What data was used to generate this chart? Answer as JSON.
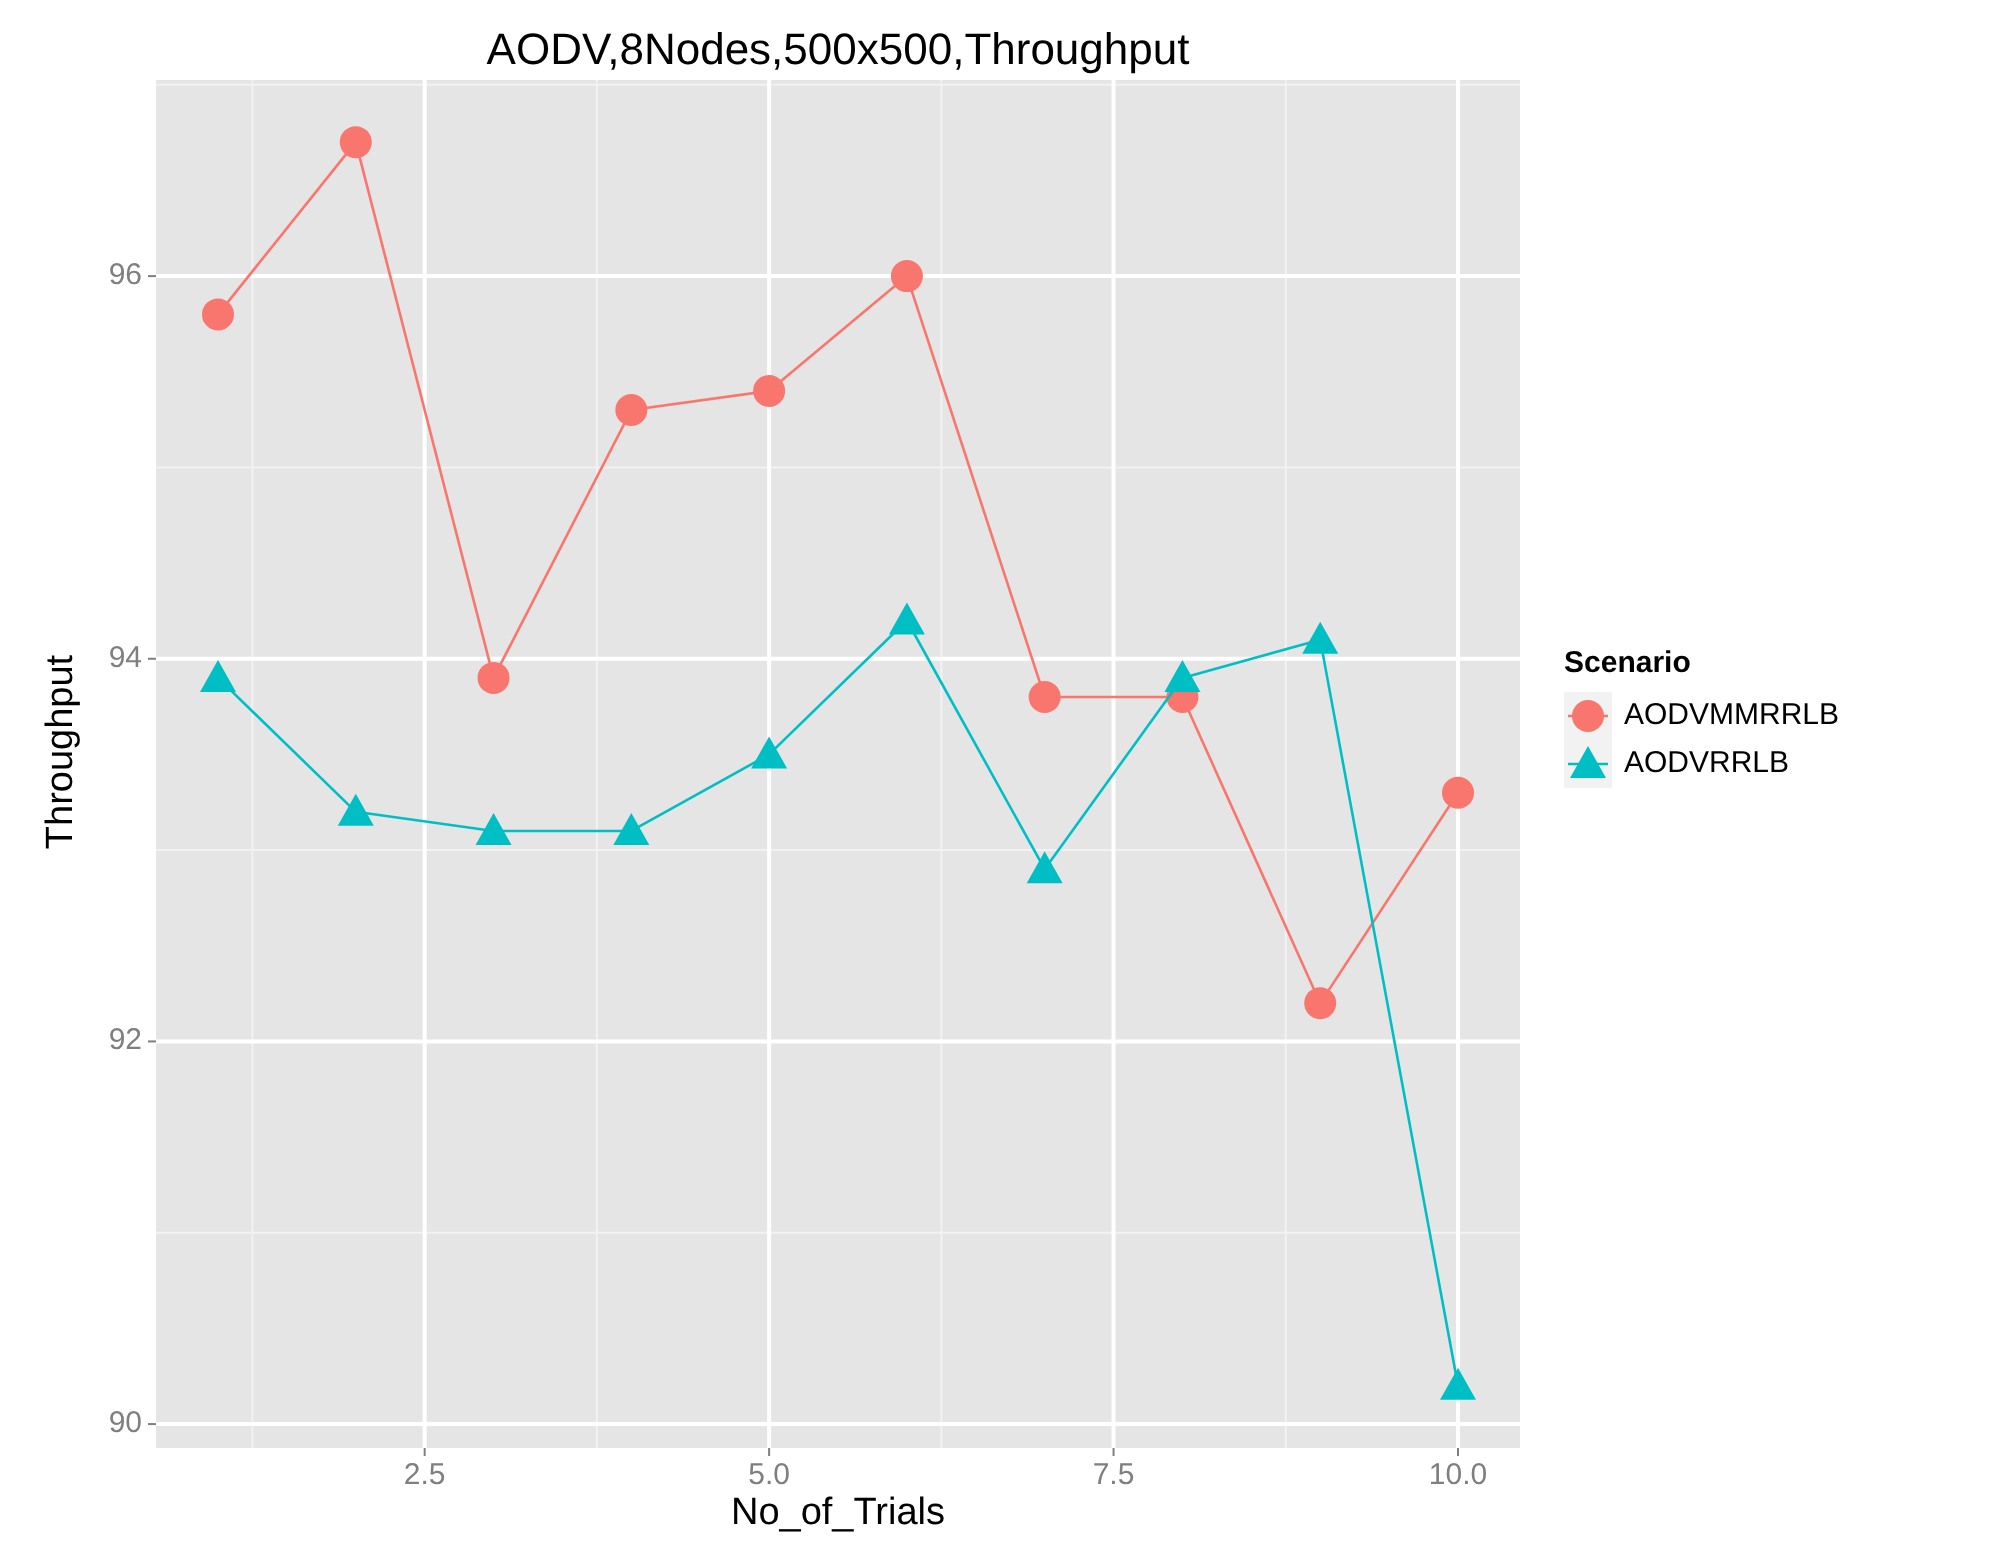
{
  "chart_data": {
    "type": "line",
    "title": "AODV,8Nodes,500x500,Throughput",
    "xlabel": "No_of_Trials",
    "ylabel": "Throughput",
    "legend_title": "Scenario",
    "legend": "right",
    "grid": true,
    "x": [
      1,
      2,
      3,
      4,
      5,
      6,
      7,
      8,
      9,
      10
    ],
    "xlim": [
      0.55,
      10.45
    ],
    "xticks": [
      2.5,
      {
        "value": 5,
        "label": "5.0"
      },
      7.5,
      {
        "value": 10,
        "label": "10.0"
      }
    ],
    "ylim": [
      89.875,
      97.025
    ],
    "yticks": [
      90,
      92,
      94,
      96
    ],
    "series": [
      {
        "name": "AODVMMRRLB",
        "color": "#f8766d",
        "marker": "circle",
        "values": [
          95.8,
          96.7,
          93.9,
          95.3,
          95.4,
          96.0,
          93.8,
          93.8,
          92.2,
          93.3
        ]
      },
      {
        "name": "AODVRRLB",
        "color": "#00bfc4",
        "marker": "triangle",
        "values": [
          93.9,
          93.2,
          93.1,
          93.1,
          93.5,
          94.2,
          92.9,
          93.9,
          94.1,
          90.2
        ]
      }
    ]
  }
}
